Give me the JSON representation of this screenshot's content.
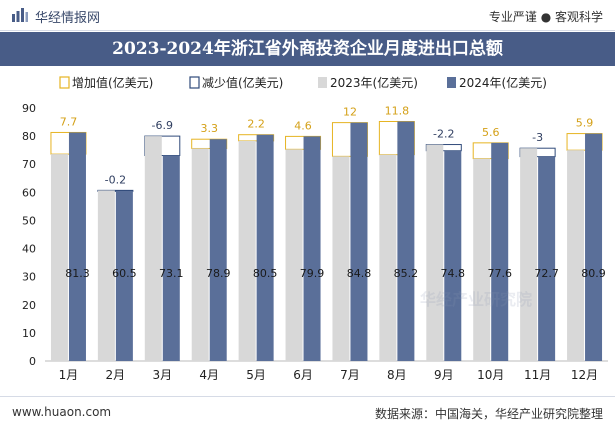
{
  "header": {
    "brand": "华经情报网",
    "tagline": "专业严谨 ● 客观科学"
  },
  "footer": {
    "website": "www.huaon.com",
    "source": "数据来源：中国海关，华经产业研究院整理"
  },
  "watermark": "华经产业研究院",
  "colors": {
    "banner": "#485c87",
    "bar_2023": "#d8d8d8",
    "bar_2024": "#5a6f99",
    "increase_box": "#e6b422",
    "decrease_box": "#2f4a7a",
    "increase_label": "#d4a017",
    "decrease_label": "#2f3e60"
  },
  "chart_data": {
    "type": "bar",
    "title": "2023-2024年浙江省外商投资企业月度进出口总额",
    "categories": [
      "1月",
      "2月",
      "3月",
      "4月",
      "5月",
      "6月",
      "7月",
      "8月",
      "9月",
      "10月",
      "11月",
      "12月"
    ],
    "series": [
      {
        "name": "2023年(亿美元)",
        "values": [
          73.6,
          60.7,
          80.0,
          75.6,
          78.3,
          75.3,
          72.8,
          73.4,
          77.0,
          72.0,
          75.7,
          75.0
        ]
      },
      {
        "name": "2024年(亿美元)",
        "values": [
          81.3,
          60.5,
          73.1,
          78.9,
          80.5,
          79.9,
          84.8,
          85.2,
          74.8,
          77.6,
          72.7,
          80.9
        ]
      }
    ],
    "change": [
      7.7,
      -0.2,
      -6.9,
      3.3,
      2.2,
      4.6,
      12,
      11.8,
      -2.2,
      5.6,
      -3,
      5.9
    ],
    "change_labels": [
      "7.7",
      "-0.2",
      "-6.9",
      "3.3",
      "2.2",
      "4.6",
      "12",
      "11.8",
      "-2.2",
      "5.6",
      "-3",
      "5.9"
    ],
    "value_labels": [
      "81.3",
      "60.5",
      "73.1",
      "78.9",
      "80.5",
      "79.9",
      "84.8",
      "85.2",
      "74.8",
      "77.6",
      "72.7",
      "80.9"
    ],
    "legend": [
      "增加值(亿美元)",
      "减少值(亿美元)",
      "2023年(亿美元)",
      "2024年(亿美元)"
    ],
    "legend_position": "top",
    "y_ticks": [
      "0",
      "10",
      "20",
      "30",
      "40",
      "50",
      "60",
      "70",
      "80",
      "90"
    ],
    "ylim": [
      0,
      90
    ],
    "xlabel": "",
    "ylabel": "",
    "grid": false
  }
}
